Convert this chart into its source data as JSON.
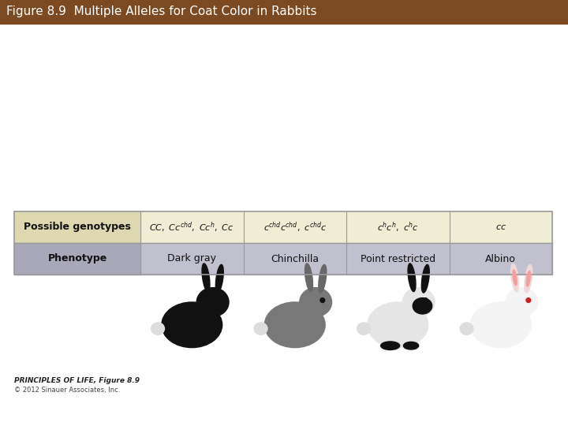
{
  "title": "Figure 8.9  Multiple Alleles for Coat Color in Rabbits",
  "title_bg": "#7B4A22",
  "title_color": "#FFFFFF",
  "title_fontsize": 11,
  "fig_bg": "#FFFFFF",
  "row1_bg": "#F0EDD5",
  "row2_bg": "#C0C0CE",
  "header_row1_bg": "#E8E0C0",
  "header_row2_bg": "#B0B0BE",
  "row1_label": "Possible genotypes",
  "row2_label": "Phenotype",
  "phenotypes": [
    "Dark gray",
    "Chinchilla",
    "Point restricted",
    "Albino"
  ],
  "copyright_line1": "PRINCIPLES OF LIFE, Figure 8.9",
  "copyright_line2": "© 2012 Sinauer Associates, Inc.",
  "border_color": "#999999",
  "text_color": "#111111"
}
